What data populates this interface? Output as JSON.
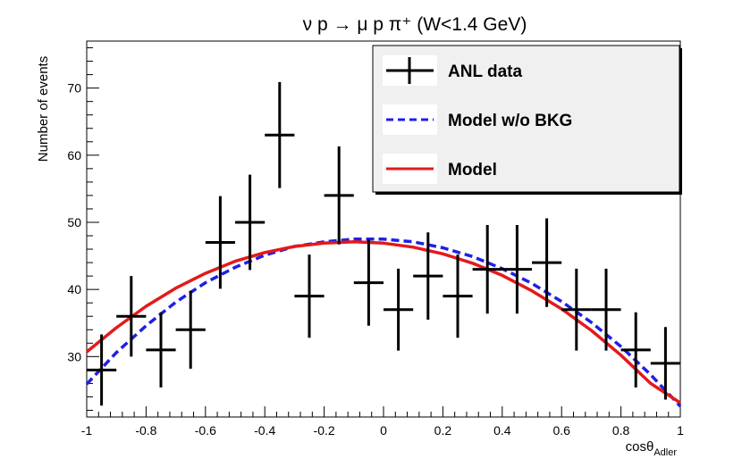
{
  "chart_data": {
    "type": "scatter",
    "title": "ν p → μ p π⁺ (W<1.4 GeV)",
    "xlabel": "cosθ",
    "xlabel_sub": "Adler",
    "ylabel": "Number of events",
    "xlim": [
      -1,
      1
    ],
    "ylim": [
      21,
      77
    ],
    "xticks": [
      -1,
      -0.8,
      -0.6,
      -0.4,
      -0.2,
      0,
      0.2,
      0.4,
      0.6,
      0.8,
      1
    ],
    "xtick_labels": [
      "-1",
      "-0.8",
      "-0.6",
      "-0.4",
      "-0.2",
      "0",
      "0.2",
      "0.4",
      "0.6",
      "0.8",
      "1"
    ],
    "yticks": [
      30,
      40,
      50,
      60,
      70
    ],
    "ytick_labels": [
      "30",
      "40",
      "50",
      "60",
      "70"
    ],
    "legend_position": "top-right",
    "series": [
      {
        "name": "ANL data",
        "style": "errorbar",
        "color": "#000000",
        "x": [
          -0.95,
          -0.85,
          -0.75,
          -0.65,
          -0.55,
          -0.45,
          -0.35,
          -0.25,
          -0.15,
          -0.05,
          0.05,
          0.15,
          0.25,
          0.35,
          0.45,
          0.55,
          0.65,
          0.75,
          0.85,
          0.95
        ],
        "y": [
          28,
          36,
          31,
          34,
          47,
          50,
          63,
          39,
          54,
          41,
          37,
          42,
          39,
          43,
          43,
          44,
          37,
          37,
          31,
          29
        ],
        "yerr": [
          5.3,
          6.0,
          5.6,
          5.8,
          6.9,
          7.1,
          7.9,
          6.2,
          7.3,
          6.4,
          6.1,
          6.5,
          6.2,
          6.6,
          6.6,
          6.6,
          6.1,
          6.1,
          5.6,
          5.4
        ],
        "xerr": 0.05
      },
      {
        "name": "Model w/o BKG",
        "style": "dashed",
        "color": "#1f1fe6",
        "x": [
          -1,
          -0.9,
          -0.8,
          -0.7,
          -0.6,
          -0.5,
          -0.4,
          -0.3,
          -0.2,
          -0.1,
          0,
          0.1,
          0.2,
          0.3,
          0.4,
          0.5,
          0.6,
          0.7,
          0.8,
          0.9,
          1
        ],
        "y": [
          25.9,
          30.6,
          34.6,
          38.1,
          41.0,
          43.3,
          45.1,
          46.4,
          47.1,
          47.5,
          47.5,
          47.1,
          46.2,
          44.9,
          43.1,
          40.9,
          38.2,
          35.1,
          31.5,
          27.3,
          22.6
        ]
      },
      {
        "name": "Model",
        "style": "solid",
        "color": "#e31a1a",
        "x": [
          -1,
          -0.9,
          -0.8,
          -0.7,
          -0.6,
          -0.5,
          -0.4,
          -0.3,
          -0.2,
          -0.1,
          0,
          0.1,
          0.2,
          0.3,
          0.4,
          0.5,
          0.6,
          0.7,
          0.8,
          0.9,
          1
        ],
        "y": [
          30.7,
          34.3,
          37.5,
          40.2,
          42.4,
          44.2,
          45.5,
          46.4,
          46.9,
          47.1,
          46.9,
          46.3,
          45.3,
          43.9,
          42.1,
          39.8,
          37.1,
          33.9,
          30.2,
          26.0,
          23.1
        ]
      }
    ]
  }
}
